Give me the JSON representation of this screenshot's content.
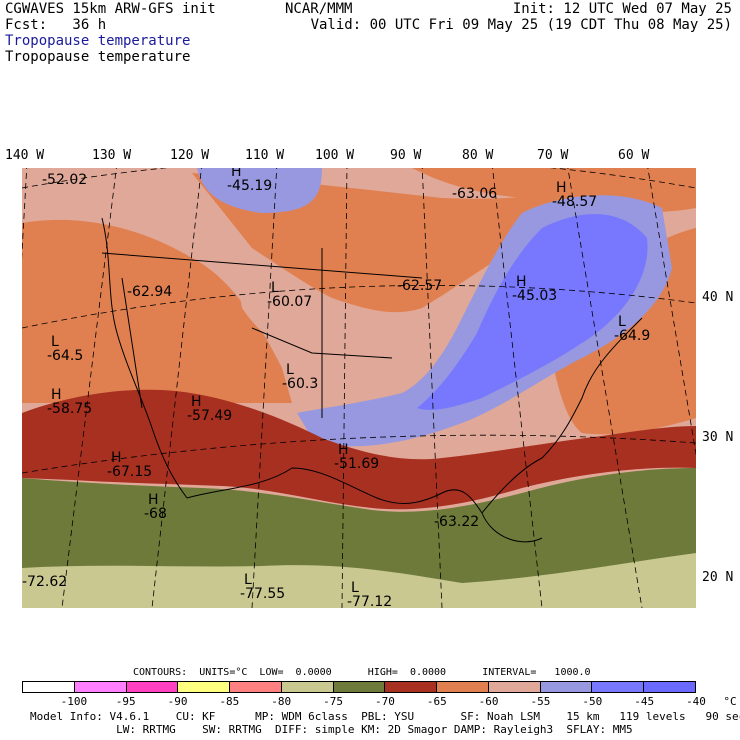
{
  "header": {
    "model_line": "CGWAVES 15km ARW-GFS init",
    "fcst_line": "Fcst:   36 h",
    "subtitle_1": "Tropopause temperature",
    "subtitle_2": "Tropopause temperature",
    "org": "NCAR/MMM",
    "init": "Init: 12 UTC Wed 07 May 25",
    "valid": "Valid: 00 UTC Fri 09 May 25 (19 CDT Thu 08 May 25)"
  },
  "longitude_labels": [
    "140 W",
    "130 W",
    "120 W",
    "110 W",
    "100 W",
    "90 W",
    "80 W",
    "70 W",
    "60 W"
  ],
  "latitude_labels": [
    "40 N",
    "30 N",
    "20 N"
  ],
  "map_labels": [
    {
      "kind": "",
      "value": "-52.02"
    },
    {
      "kind": "H",
      "value": "-45.19"
    },
    {
      "kind": "",
      "value": "-63.06"
    },
    {
      "kind": "H",
      "value": "-48.57"
    },
    {
      "kind": "",
      "value": "-62.94"
    },
    {
      "kind": "L",
      "value": "-60.07"
    },
    {
      "kind": "",
      "value": "-62.57"
    },
    {
      "kind": "H",
      "value": "-45.03"
    },
    {
      "kind": "L",
      "value": "-64.5"
    },
    {
      "kind": "L",
      "value": "-64.9"
    },
    {
      "kind": "L",
      "value": "-60.3"
    },
    {
      "kind": "H",
      "value": "-58.75"
    },
    {
      "kind": "H",
      "value": "-57.49"
    },
    {
      "kind": "H",
      "value": "-67.15"
    },
    {
      "kind": "H",
      "value": "-51.69"
    },
    {
      "kind": "H",
      "value": "-68"
    },
    {
      "kind": "",
      "value": "-63.22"
    },
    {
      "kind": "",
      "value": "-72.62"
    },
    {
      "kind": "L",
      "value": "-77.55"
    },
    {
      "kind": "L",
      "value": "-77.12"
    }
  ],
  "contours_line": "CONTOURS:  UNITS=°C  LOW=  0.0000      HIGH=  0.0000      INTERVAL=   1000.0",
  "legend": {
    "colors": [
      "#ffffff",
      "#ff80ff",
      "#ff40c0",
      "#ffff80",
      "#ff8080",
      "#c8c890",
      "#6e7a3a",
      "#a83020",
      "#e08050",
      "#e0a898",
      "#9898e0",
      "#7878ff",
      "#6a6aff"
    ],
    "ticks": [
      "-100",
      "-95",
      "-90",
      "-85",
      "-80",
      "-75",
      "-70",
      "-65",
      "-60",
      "-55",
      "-50",
      "-45",
      "-40",
      "°C"
    ]
  },
  "footer": {
    "line1": "Model Info: V4.6.1    CU: KF      MP: WDM 6class  PBL: YSU       SF: Noah LSM    15 km   119 levels   90 sec",
    "line2": "             LW: RRTMG    SW: RRTMG  DIFF: simple KM: 2D Smagor DAMP: Rayleigh3  SFLAY: MM5"
  },
  "colors": {
    "green": "#6e7a3a",
    "khaki": "#c8c890",
    "dark_red": "#a83020",
    "orange": "#e08050",
    "salmon": "#e0a898",
    "lavender": "#9898e0",
    "blue": "#7878ff"
  }
}
